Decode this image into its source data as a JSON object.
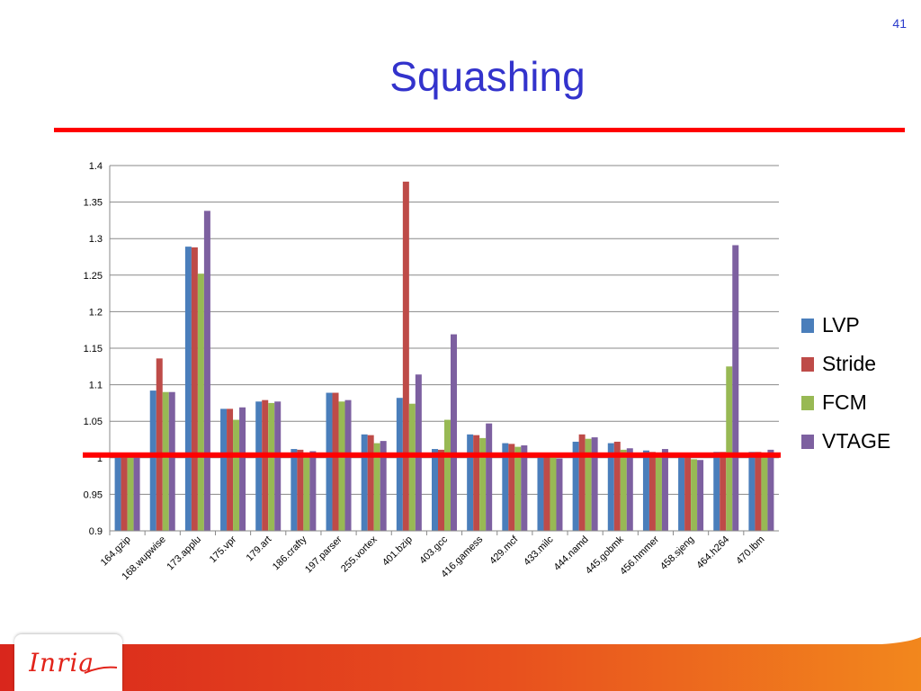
{
  "slide": {
    "number": "41",
    "title": "Squashing",
    "logo_text": "Inria"
  },
  "colors": {
    "title": "#3333cc",
    "rule": "#ff0000",
    "LVP": "#4a7ebb",
    "Stride": "#be4b48",
    "FCM": "#98b954",
    "VTAGE": "#7d60a0",
    "baseline": "#ff0000"
  },
  "chart_data": {
    "type": "bar",
    "categories": [
      "164.gzip",
      "168.wupwise",
      "173.applu",
      "175.vpr",
      "179.art",
      "186.crafty",
      "197.parser",
      "255.vortex",
      "401.bzip",
      "403.gcc",
      "416.gamess",
      "429.mcf",
      "433.milc",
      "444.namd",
      "445.gobmk",
      "456.hmmer",
      "458.sjeng",
      "464.h264",
      "470.lbm"
    ],
    "series": [
      {
        "name": "LVP",
        "values": [
          1.0,
          1.092,
          1.289,
          1.067,
          1.077,
          1.012,
          1.089,
          1.032,
          1.082,
          1.012,
          1.032,
          1.02,
          1.0,
          1.022,
          1.02,
          1.01,
          1.002,
          1.008,
          1.008
        ]
      },
      {
        "name": "Stride",
        "values": [
          1.0,
          1.136,
          1.288,
          1.067,
          1.079,
          1.011,
          1.089,
          1.031,
          1.378,
          1.011,
          1.031,
          1.019,
          1.002,
          1.032,
          1.022,
          1.008,
          1.001,
          1.008,
          1.008
        ]
      },
      {
        "name": "FCM",
        "values": [
          1.0,
          1.09,
          1.252,
          1.052,
          1.075,
          1.001,
          1.077,
          1.02,
          1.074,
          1.052,
          1.027,
          1.015,
          1.004,
          1.026,
          1.011,
          1.003,
          0.998,
          1.125,
          1.003
        ]
      },
      {
        "name": "VTAGE",
        "values": [
          1.0,
          1.09,
          1.338,
          1.069,
          1.077,
          1.009,
          1.079,
          1.023,
          1.114,
          1.169,
          1.047,
          1.017,
          0.999,
          1.028,
          1.013,
          1.012,
          0.997,
          1.291,
          1.011
        ]
      }
    ],
    "y_ticks": [
      "0.9",
      "0.95",
      "1",
      "1.05",
      "1.1",
      "1.15",
      "1.2",
      "1.25",
      "1.3",
      "1.35",
      "1.4"
    ],
    "ylim": [
      0.9,
      1.4
    ],
    "baseline_value": 1.0,
    "grid": true,
    "legend": "right"
  }
}
